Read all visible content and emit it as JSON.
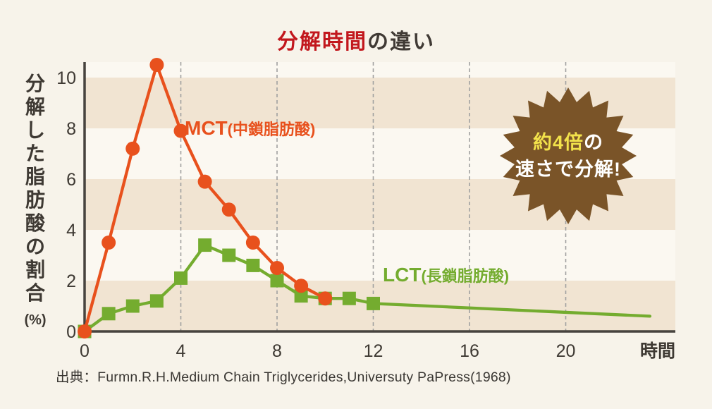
{
  "title": {
    "highlight": "分解時間",
    "rest": "の違い",
    "highlight_color": "#c2171d",
    "text_color": "#403a35"
  },
  "yaxis_title": {
    "text": "分解した脂肪酸の割合",
    "unit": "(%)"
  },
  "series_labels": {
    "mct": {
      "abbr": "MCT",
      "paren": "(中鎖脂肪酸)",
      "color": "#e8511d"
    },
    "lct": {
      "abbr": "LCT",
      "paren": "(長鎖脂肪酸)",
      "color": "#74ac2f"
    }
  },
  "badge": {
    "line1_highlight": "約4倍",
    "line1_rest": "の",
    "line2": "速さで分解!",
    "bg_color": "#7a5428",
    "highlight_color": "#f2e24b",
    "text_color": "#ffffff"
  },
  "source": "出典：Furmn.R.H.Medium Chain Triglycerides,Universuty PaPress(1968)",
  "chart_data": {
    "type": "line",
    "title": "分解時間の違い",
    "xlabel": "時間",
    "ylabel": "分解した脂肪酸の割合(%)",
    "x_ticks": [
      0,
      4,
      8,
      12,
      16,
      20
    ],
    "y_ticks": [
      0,
      2,
      4,
      6,
      8,
      10
    ],
    "xlim": [
      0,
      24.6
    ],
    "ylim": [
      0,
      10.6
    ],
    "grid": "vertical-dashed",
    "grid_color": "#a0a0a0",
    "plot_bg": "#fbf8f1",
    "band_fill": {
      "color": "#f1e4d2",
      "pairs": [
        [
          0,
          2
        ],
        [
          4,
          6
        ],
        [
          8,
          10
        ]
      ]
    },
    "axis_color": "#47433e",
    "series": [
      {
        "name": "LCT(長鎖脂肪酸)",
        "color": "#74ac2f",
        "marker": "square",
        "x": [
          0,
          1,
          2,
          3,
          4,
          5,
          6,
          7,
          8,
          9,
          10,
          11,
          12
        ],
        "y": [
          0,
          0.7,
          1.0,
          1.2,
          2.1,
          3.4,
          3.0,
          2.6,
          2.0,
          1.4,
          1.3,
          1.3,
          1.1
        ],
        "tail": {
          "x": 23.5,
          "y": 0.6
        }
      },
      {
        "name": "MCT(中鎖脂肪酸)",
        "color": "#e8511d",
        "marker": "circle",
        "x": [
          0,
          1,
          2,
          3,
          4,
          5,
          6,
          7,
          8,
          9,
          10
        ],
        "y": [
          0,
          3.5,
          7.2,
          10.5,
          7.9,
          5.9,
          4.8,
          3.5,
          2.5,
          1.8,
          1.3
        ]
      }
    ],
    "annotation": "約4倍の速さで分解!",
    "legend_position": "inline-labels"
  }
}
